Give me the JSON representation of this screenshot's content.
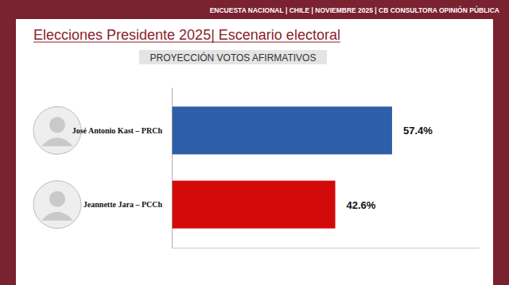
{
  "chart_data": {
    "type": "bar",
    "orientation": "horizontal",
    "title": "Elecciones Presidente 2025| Escenario electoral",
    "subtitle": "PROYECCIÓN VOTOS AFIRMATIVOS",
    "annotations": [
      "ENCUESTA NACIONAL  | CHILE | NOVIEMBRE 2025 | CB CONSULTORA OPINIÓN PÚBLICA"
    ],
    "categories": [
      "José Antonio Kast – PRCh",
      "Jeannette Jara – PCCh"
    ],
    "values": [
      57.4,
      42.6
    ],
    "value_labels": [
      "57.4%",
      "42.6%"
    ],
    "colors": [
      "#2d5ea8",
      "#d30a0a"
    ],
    "xlim": [
      0,
      80
    ],
    "xticks": [],
    "tick_labels": "y",
    "data_labels": true,
    "grid": false
  }
}
